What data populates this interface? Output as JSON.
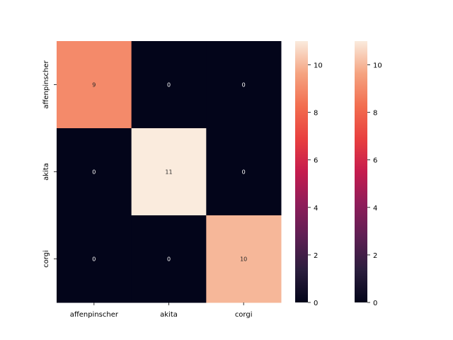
{
  "chart_data": {
    "type": "heatmap",
    "title": "",
    "xlabel": "",
    "ylabel": "",
    "x_categories": [
      "affenpinscher",
      "akita",
      "corgi"
    ],
    "y_categories": [
      "affenpinscher",
      "akita",
      "corgi"
    ],
    "values": [
      [
        9,
        0,
        0
      ],
      [
        0,
        11,
        0
      ],
      [
        0,
        0,
        10
      ]
    ],
    "annotated": true,
    "colormap": "rocket",
    "vmin": 0,
    "vmax": 11,
    "colorbar_ticks": [
      0,
      2,
      4,
      6,
      8,
      10
    ],
    "colorbar_count": 2,
    "grid": false
  }
}
